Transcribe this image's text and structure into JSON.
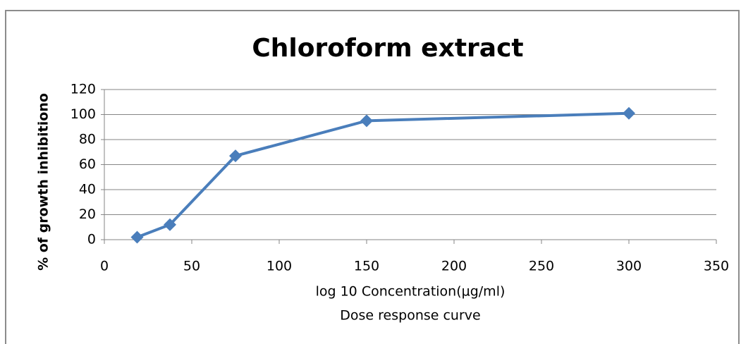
{
  "chart_data": {
    "type": "line",
    "title": "Chloroform extract",
    "x_label": "log 10 Concentration(µg/ml)",
    "subtitle": "Dose response curve",
    "y_label": "% of growth inhibitiono",
    "x": [
      18.75,
      37.5,
      75,
      150,
      300
    ],
    "series": [
      {
        "name": "Chloroform extract",
        "color": "#4a7ebb",
        "values": [
          2,
          12,
          67,
          95,
          101
        ]
      }
    ],
    "xlim": [
      0,
      350
    ],
    "xticks": [
      0,
      50,
      100,
      150,
      200,
      250,
      300,
      350
    ],
    "ylim": [
      0,
      120
    ],
    "yticks": [
      0,
      20,
      40,
      60,
      80,
      100,
      120
    ],
    "grid": true
  }
}
